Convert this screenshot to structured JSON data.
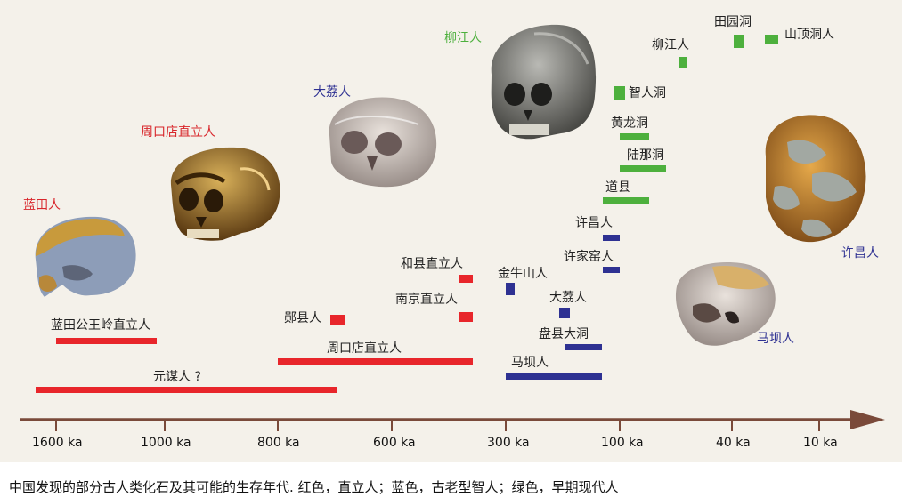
{
  "colors": {
    "homo_erectus": "#e8262b",
    "archaic_sapiens": "#2e3192",
    "early_modern": "#4db03d",
    "axis": "#7a4a3a"
  },
  "axis_ticks": [
    "1600 ka",
    "1000 ka",
    "800 ka",
    "600 ka",
    "300 ka",
    "100 ka",
    "40 ka",
    "10 ka"
  ],
  "site_labels": {
    "lantian_gongwangling": "蓝田公王岭直立人",
    "yuanmou": "元谋人 ?",
    "zhoukoudian_bar": "周口店直立人",
    "yunxian": "郧县人",
    "hexian": "和县直立人",
    "nanjing": "南京直立人",
    "jinniushan": "金牛山人",
    "dali_bar": "大荔人",
    "panxian": "盘县大洞",
    "maba_bar": "马坝人",
    "xujiayao": "许家窑人",
    "xuchang_bar": "许昌人",
    "daoxian": "道县",
    "lunadong": "陆那洞",
    "huanglongdong": "黄龙洞",
    "zhirendong": "智人洞",
    "liujiang_bar": "柳江人",
    "tianyuandong": "田园洞",
    "shandingdong": "山顶洞人"
  },
  "fossil_names": {
    "lantian": "蓝田人",
    "zhoukoudian": "周口店直立人",
    "dali": "大荔人",
    "liujiang": "柳江人",
    "xuchang": "许昌人",
    "maba": "马坝人"
  },
  "caption": "中国发现的部分古人类化石及其可能的生存年代. 红色，直立人；蓝色，古老型智人；绿色，早期现代人"
}
